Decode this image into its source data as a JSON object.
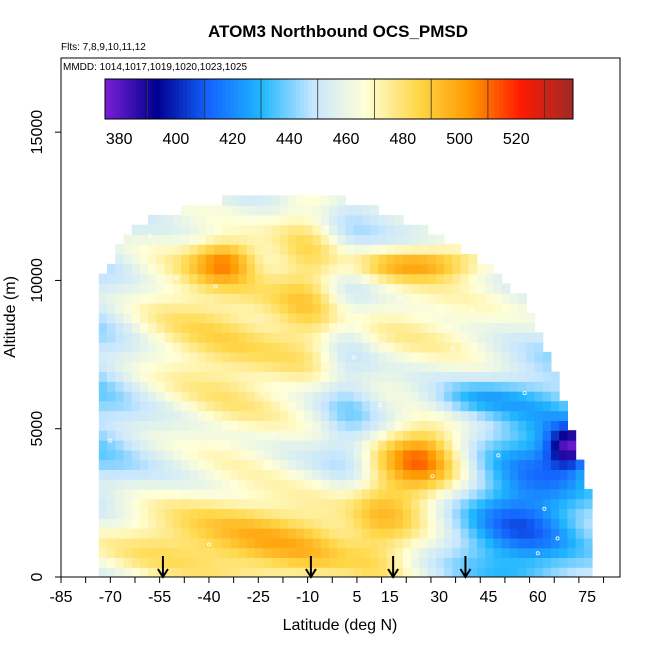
{
  "chart_data": {
    "type": "heatmap",
    "title": "ATOM3 Northbound OCS_PMSD",
    "subtitle_flights": "Flts: 7,8,9,10,11,12",
    "subtitle_dates": "MMDD: 1014,1017,1019,1020,1023,1025",
    "xlabel": "Latitude (deg N)",
    "ylabel": "Altitude (m)",
    "xlim": [
      -85,
      85
    ],
    "ylim": [
      0,
      17500
    ],
    "x_ticks": [
      -85,
      -70,
      -55,
      -40,
      -25,
      -10,
      5,
      15,
      30,
      45,
      60,
      75
    ],
    "y_ticks": [
      0,
      5000,
      10000,
      15000
    ],
    "colorbar": {
      "min": 375,
      "max": 540,
      "ticks": [
        380,
        400,
        420,
        440,
        460,
        480,
        500,
        520
      ],
      "colors": [
        "#7a1fd6",
        "#00008f",
        "#1464ff",
        "#1fb6ff",
        "#c6e6ff",
        "#ffffd8",
        "#ffd84a",
        "#ff9a00",
        "#ff1a00",
        "#9e2a2a"
      ]
    },
    "arrows_latitude": [
      -54,
      -9,
      16,
      38
    ],
    "coverage_envelope": [
      {
        "lat": -74,
        "top": 10000
      },
      {
        "lat": -68,
        "top": 11000
      },
      {
        "lat": -60,
        "top": 12000
      },
      {
        "lat": -45,
        "top": 12500
      },
      {
        "lat": -30,
        "top": 12800
      },
      {
        "lat": -15,
        "top": 13000
      },
      {
        "lat": 0,
        "top": 12800
      },
      {
        "lat": 15,
        "top": 12200
      },
      {
        "lat": 30,
        "top": 11500
      },
      {
        "lat": 45,
        "top": 10500
      },
      {
        "lat": 55,
        "top": 9500
      },
      {
        "lat": 62,
        "top": 8000
      },
      {
        "lat": 68,
        "top": 6000
      },
      {
        "lat": 73,
        "top": 4000
      },
      {
        "lat": 76,
        "top": 2500
      },
      {
        "lat": 76,
        "top": 0
      }
    ]
  }
}
